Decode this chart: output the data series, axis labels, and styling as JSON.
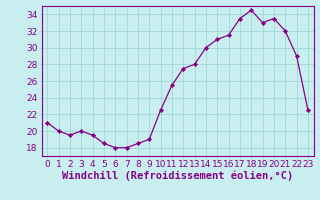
{
  "x": [
    0,
    1,
    2,
    3,
    4,
    5,
    6,
    7,
    8,
    9,
    10,
    11,
    12,
    13,
    14,
    15,
    16,
    17,
    18,
    19,
    20,
    21,
    22,
    23
  ],
  "y": [
    21,
    20,
    19.5,
    20,
    19.5,
    18.5,
    18,
    18,
    18.5,
    19,
    22.5,
    25.5,
    27.5,
    28,
    30,
    31,
    31.5,
    33.5,
    34.5,
    33,
    33.5,
    32,
    29,
    22.5
  ],
  "line_color": "#880088",
  "marker_color": "#880088",
  "bg_color": "#c8eef0",
  "grid_color": "#a0d8d8",
  "xlabel": "Windchill (Refroidissement éolien,°C)",
  "ylim": [
    17,
    35
  ],
  "yticks": [
    18,
    20,
    22,
    24,
    26,
    28,
    30,
    32,
    34
  ],
  "xticks": [
    0,
    1,
    2,
    3,
    4,
    5,
    6,
    7,
    8,
    9,
    10,
    11,
    12,
    13,
    14,
    15,
    16,
    17,
    18,
    19,
    20,
    21,
    22,
    23
  ],
  "xlabel_fontsize": 7.5,
  "tick_fontsize": 6.5
}
